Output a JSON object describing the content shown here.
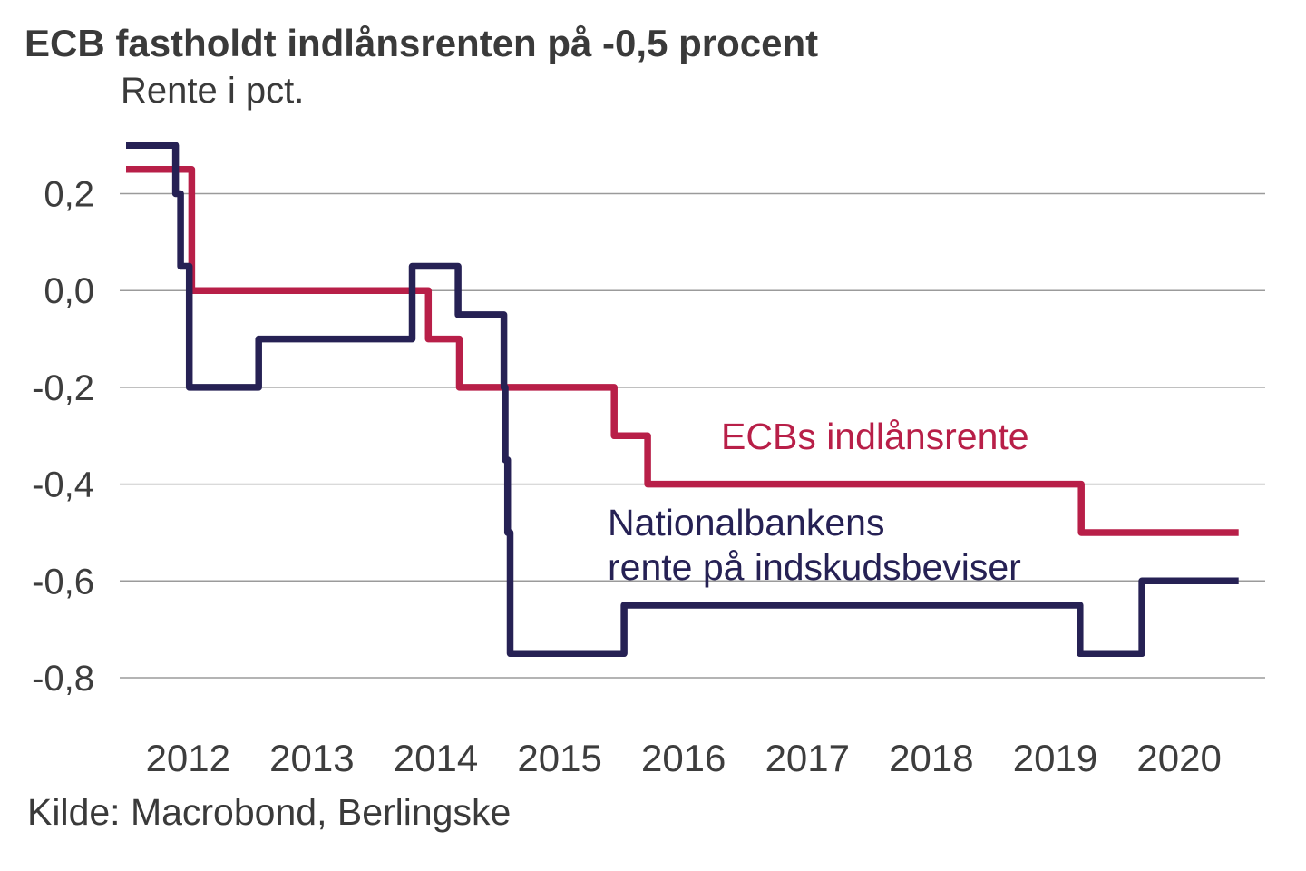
{
  "page": {
    "title": "ECB fastholdt indlånsrenten på -0,5 procent",
    "subtitle": "Rente i pct.",
    "source": "Kilde: Macrobond, Berlingske"
  },
  "chart_data": {
    "type": "line",
    "step_interpolation": true,
    "title": "ECB fastholdt indlånsrenten på -0,5 procent",
    "subtitle": "Rente i pct.",
    "ylabel": "Rente i pct.",
    "xlabel": "",
    "grid": "horizontal",
    "legend_position": "inline-annotations",
    "x_domain": [
      2012.0,
      2020.98
    ],
    "x_tick_labels": [
      "2012",
      "2013",
      "2014",
      "2015",
      "2016",
      "2017",
      "2018",
      "2019",
      "2020"
    ],
    "y_ticks": [
      0.2,
      0.0,
      -0.2,
      -0.4,
      -0.6,
      -0.8
    ],
    "y_tick_labels": [
      "0,2",
      "0,0",
      "-0,2",
      "-0,4",
      "-0,6",
      "-0,8"
    ],
    "colors": {
      "ecb_red": "#b81f48",
      "nationalbank_navy": "#262154",
      "gridline_gray": "#9b9b9b",
      "text_gray": "#3d3d3d"
    },
    "series": [
      {
        "key": "ecb-indlaansrente",
        "name": "ECBs indlånsrente",
        "color": "#b81f48",
        "unit": "pct",
        "points": [
          [
            2012.0,
            0.25
          ],
          [
            2012.53,
            0.0
          ],
          [
            2014.44,
            -0.1
          ],
          [
            2014.69,
            -0.2
          ],
          [
            2015.94,
            -0.3
          ],
          [
            2016.21,
            -0.4
          ],
          [
            2019.71,
            -0.5
          ]
        ]
      },
      {
        "key": "nationalbanken-indskudsbeviser",
        "name": "Nationalbankens rente på indskudsbeviser",
        "color": "#262154",
        "unit": "pct",
        "points": [
          [
            2012.0,
            0.3
          ],
          [
            2012.4,
            0.2
          ],
          [
            2012.44,
            0.05
          ],
          [
            2012.51,
            -0.2
          ],
          [
            2013.07,
            -0.1
          ],
          [
            2014.31,
            0.05
          ],
          [
            2014.68,
            -0.05
          ],
          [
            2015.05,
            -0.2
          ],
          [
            2015.06,
            -0.35
          ],
          [
            2015.08,
            -0.5
          ],
          [
            2015.1,
            -0.75
          ],
          [
            2016.02,
            -0.65
          ],
          [
            2019.7,
            -0.75
          ],
          [
            2020.2,
            -0.6
          ]
        ]
      }
    ],
    "annotations": [
      {
        "key": "ecb-label",
        "color": "#b81f48",
        "lines": [
          "ECBs indlånsrente"
        ]
      },
      {
        "key": "nationalbank-label",
        "color": "#262154",
        "lines": [
          "Nationalbankens",
          "rente på indskudsbeviser"
        ]
      }
    ]
  }
}
